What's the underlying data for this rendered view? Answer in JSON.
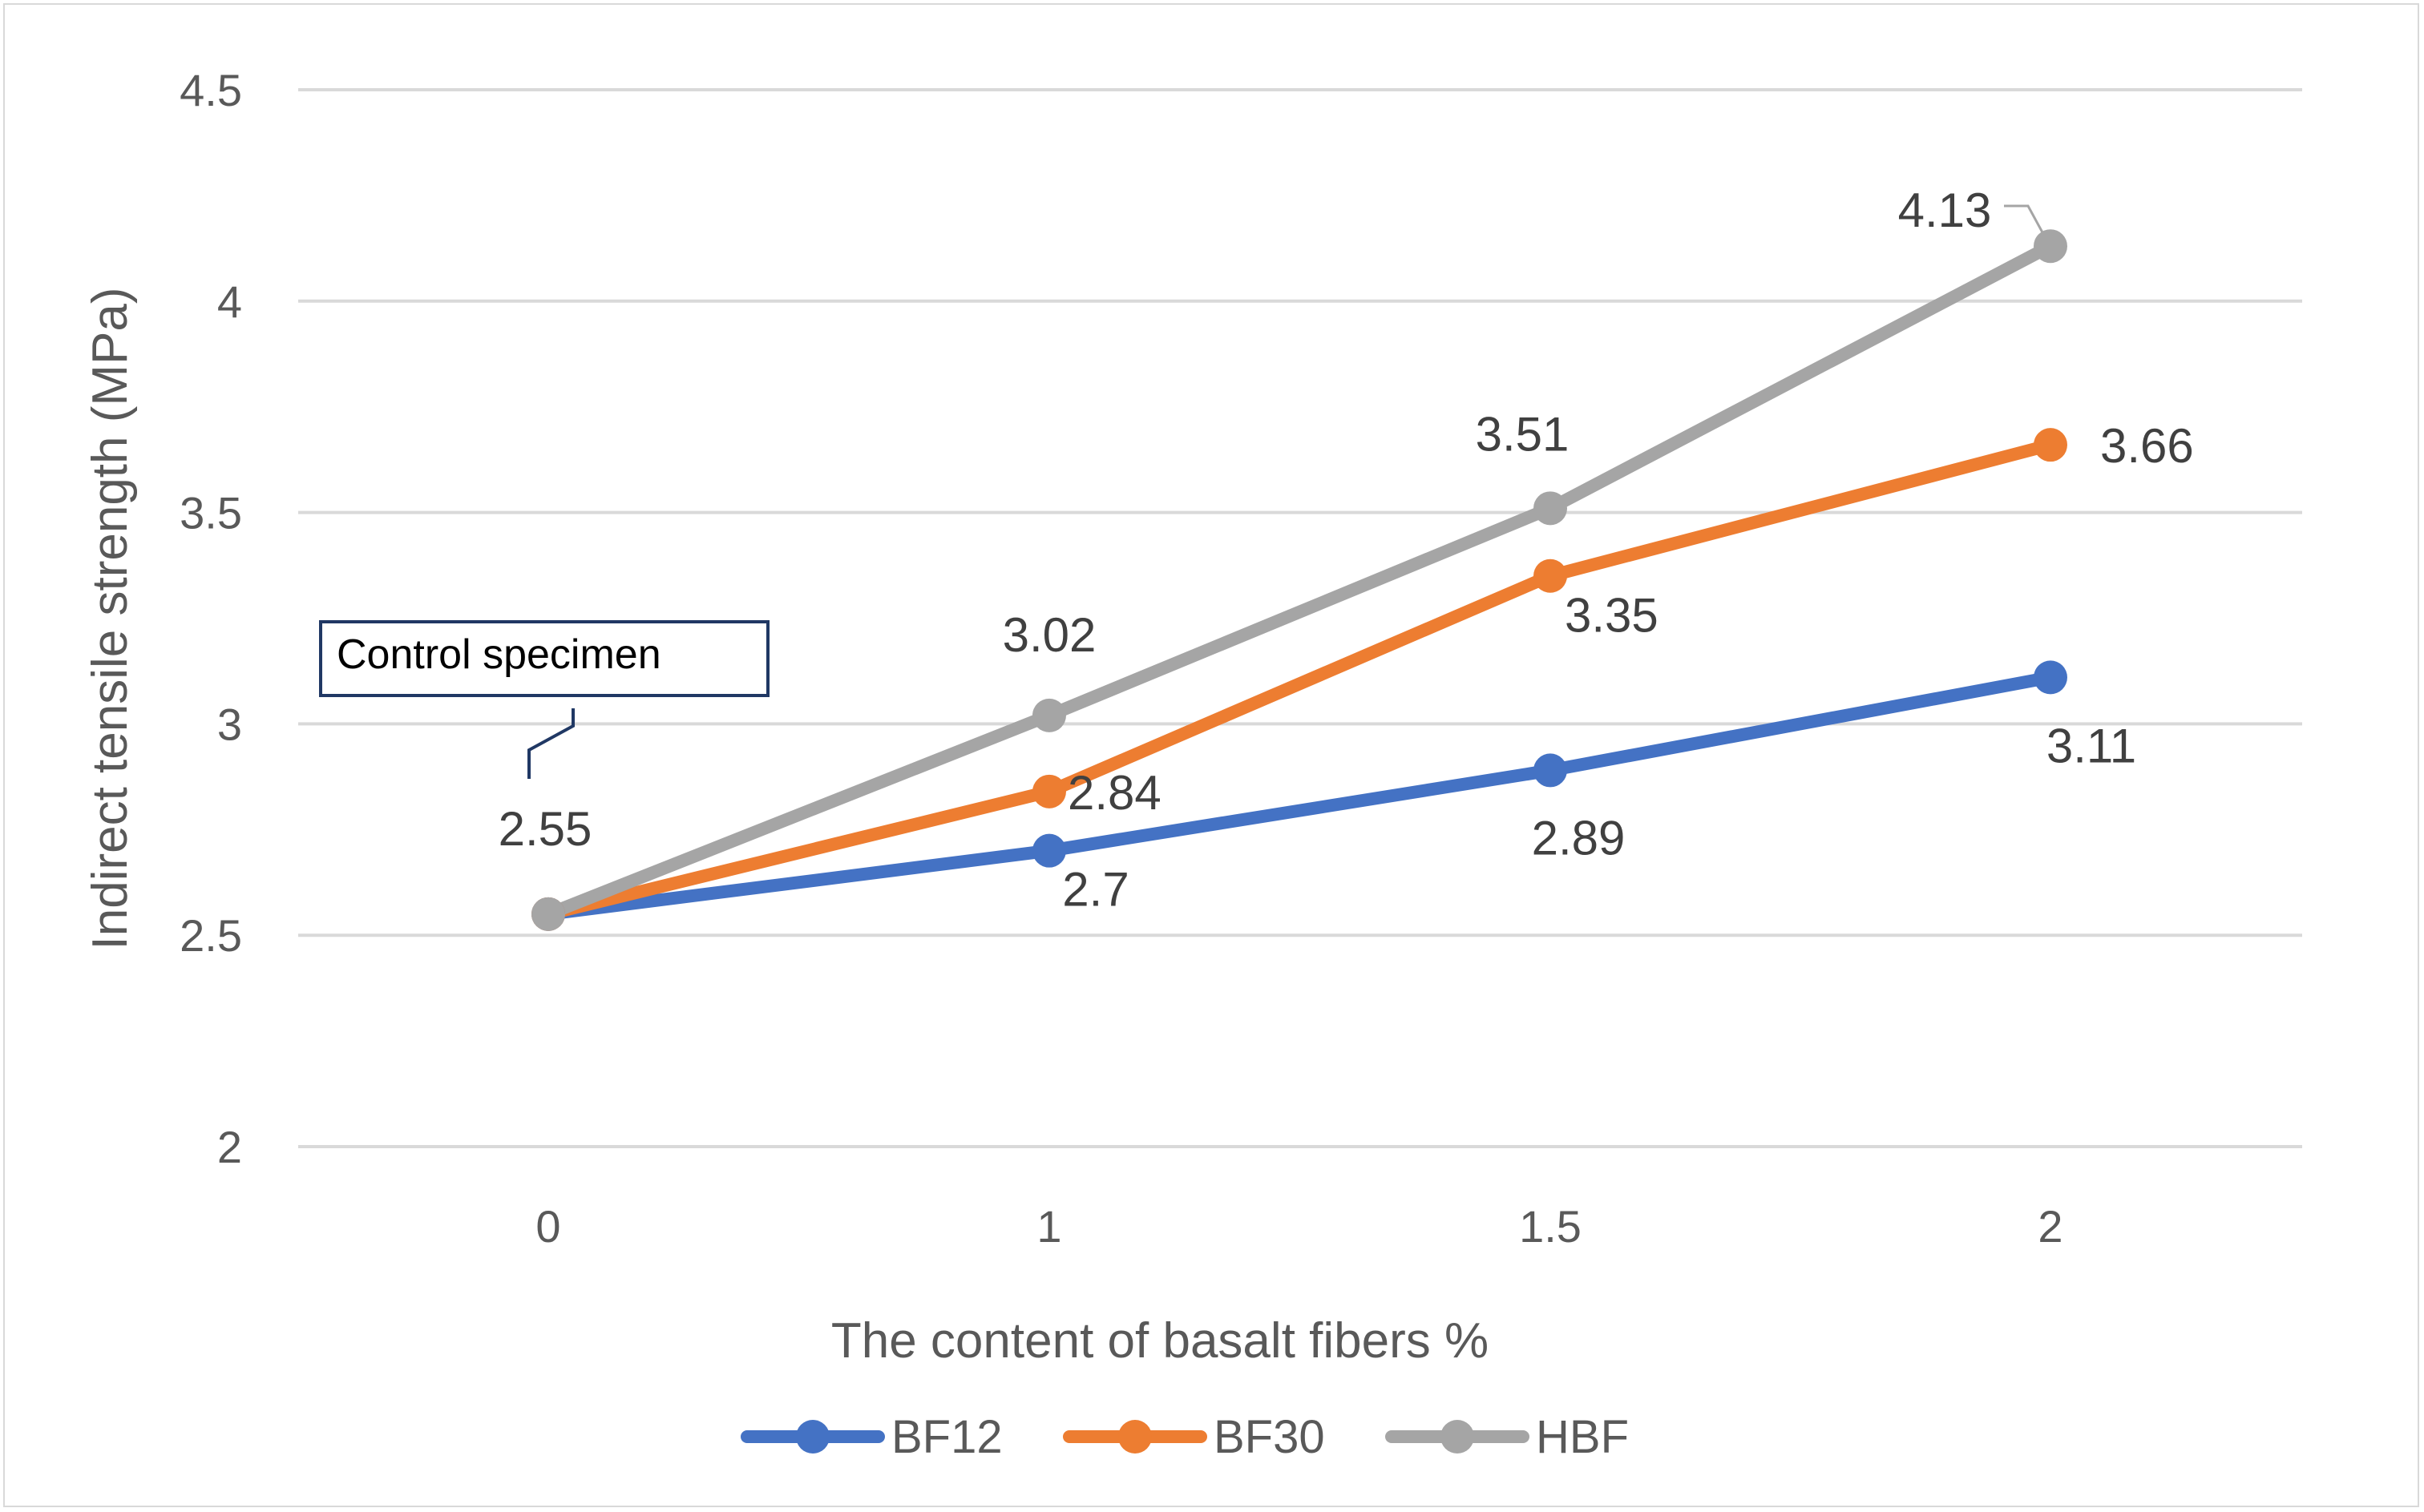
{
  "chart_data": {
    "type": "line",
    "title": "",
    "xlabel": "The content of basalt fibers %",
    "ylabel": "Indirect tensile strength (MPa)",
    "categories": [
      "0",
      "1",
      "1.5",
      "2"
    ],
    "ylim": [
      2,
      4.5
    ],
    "yticks": [
      "2",
      "2.5",
      "3",
      "3.5",
      "4",
      "4.5"
    ],
    "grid": true,
    "legend_position": "bottom",
    "series": [
      {
        "name": "BF12",
        "color": "#4472c4",
        "values": [
          2.55,
          2.7,
          2.89,
          3.11
        ],
        "labels": [
          "",
          "2.7",
          "2.89",
          "3.11"
        ]
      },
      {
        "name": "BF30",
        "color": "#ed7d31",
        "values": [
          2.55,
          2.84,
          3.35,
          3.66
        ],
        "labels": [
          "",
          "2.84",
          "3.35",
          "3.66"
        ]
      },
      {
        "name": "HBF",
        "color": "#a5a5a5",
        "values": [
          2.55,
          3.02,
          3.51,
          4.13
        ],
        "labels": [
          "2.55",
          "3.02",
          "3.51",
          "4.13"
        ]
      }
    ],
    "annotation": {
      "text": "Control specimen",
      "color": "#203864"
    }
  }
}
